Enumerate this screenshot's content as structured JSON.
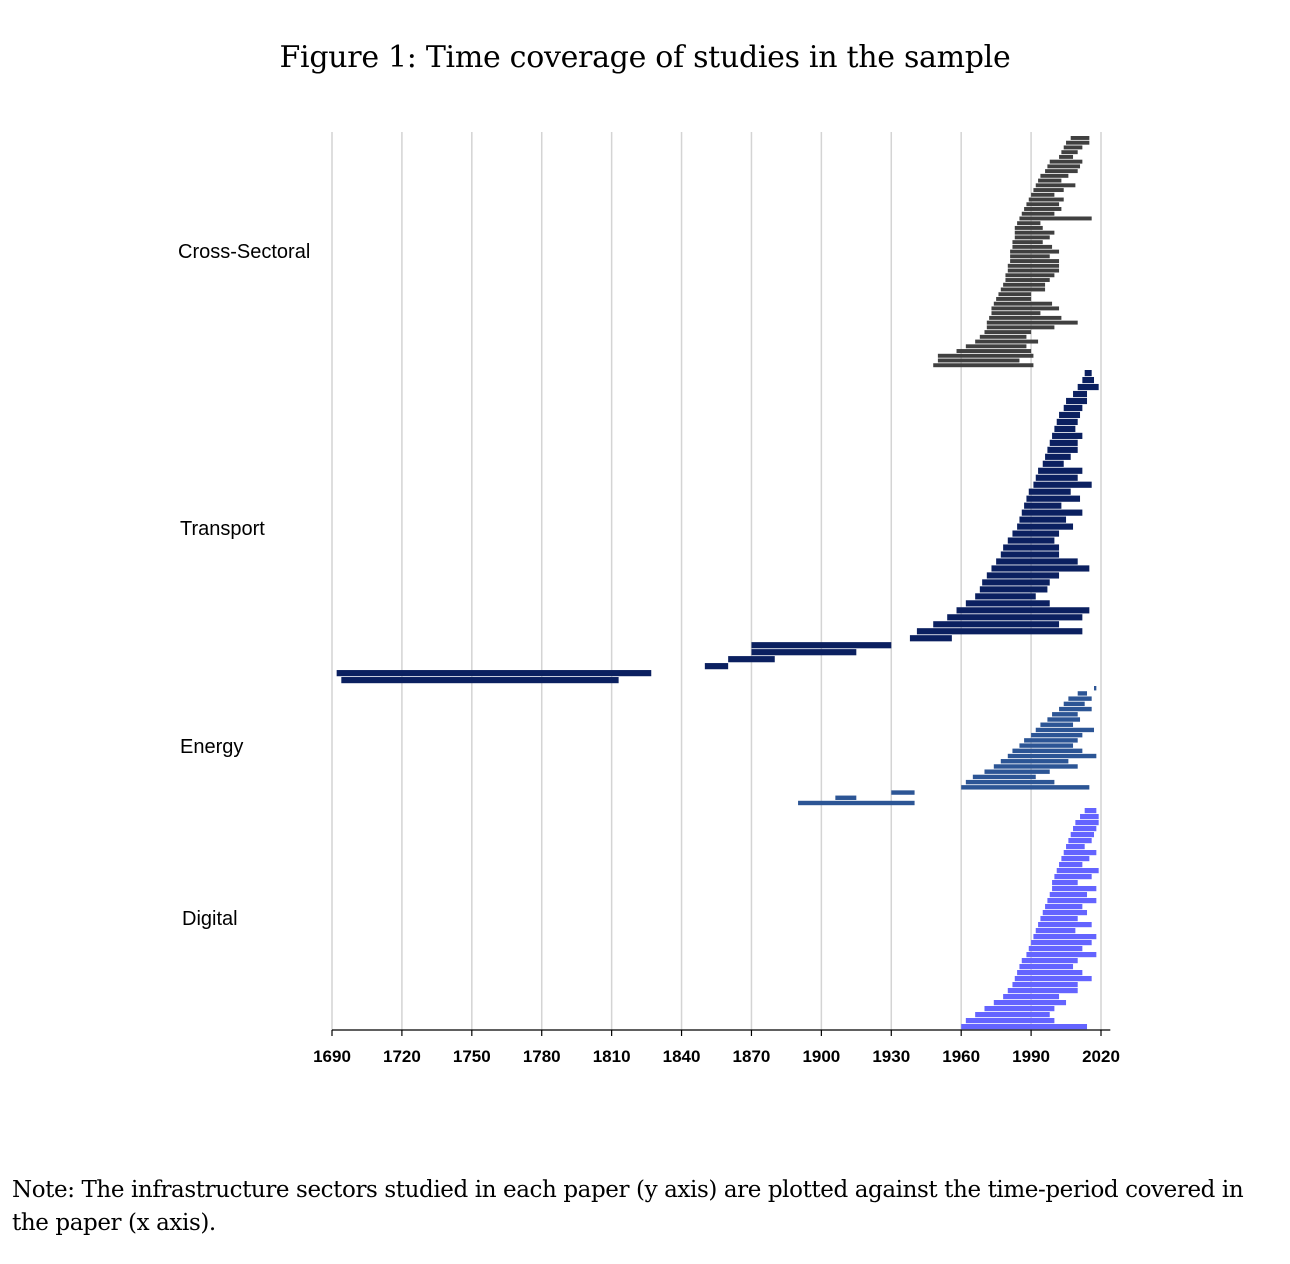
{
  "figure_title": "Figure 1: Time coverage of studies in the sample",
  "note": "Note: The infrastructure sectors studied in each paper (y axis) are plotted against the time-period covered in the paper (x axis).",
  "chart_data": {
    "type": "range-bar",
    "title": "Figure 1: Time coverage of studies in the sample",
    "xlabel": "",
    "ylabel": "",
    "xlim": [
      1690,
      2024
    ],
    "xticks": [
      1690,
      1720,
      1750,
      1780,
      1810,
      1840,
      1870,
      1900,
      1930,
      1960,
      1990,
      2020
    ],
    "grid": "vertical",
    "categories": [
      "Cross-Sectoral",
      "Transport",
      "Energy",
      "Digital"
    ],
    "colors": {
      "Cross-Sectoral": "#404040",
      "Transport": "#0b2060",
      "Energy": "#2c5595",
      "Digital": "#6464ff"
    },
    "series": [
      {
        "name": "Cross-Sectoral",
        "ranges": [
          [
            2007,
            2015
          ],
          [
            2005,
            2015
          ],
          [
            2004,
            2012
          ],
          [
            2003,
            2010
          ],
          [
            2002,
            2008
          ],
          [
            1998,
            2012
          ],
          [
            1997,
            2011
          ],
          [
            1996,
            2010
          ],
          [
            1994,
            2006
          ],
          [
            1993,
            2003
          ],
          [
            1992,
            2009
          ],
          [
            1991,
            2004
          ],
          [
            1990,
            2000
          ],
          [
            1989,
            2004
          ],
          [
            1988,
            2002
          ],
          [
            1987,
            2003
          ],
          [
            1986,
            2000
          ],
          [
            1985,
            2016
          ],
          [
            1984,
            1994
          ],
          [
            1983,
            1995
          ],
          [
            1983,
            2000
          ],
          [
            1983,
            1998
          ],
          [
            1982,
            1995
          ],
          [
            1982,
            1999
          ],
          [
            1981,
            2002
          ],
          [
            1981,
            1998
          ],
          [
            1981,
            2002
          ],
          [
            1980,
            2002
          ],
          [
            1980,
            2002
          ],
          [
            1979,
            2000
          ],
          [
            1979,
            1998
          ],
          [
            1978,
            1996
          ],
          [
            1977,
            1996
          ],
          [
            1976,
            1990
          ],
          [
            1975,
            1990
          ],
          [
            1974,
            1999
          ],
          [
            1973,
            2002
          ],
          [
            1973,
            1994
          ],
          [
            1972,
            2003
          ],
          [
            1971,
            2010
          ],
          [
            1971,
            2000
          ],
          [
            1970,
            1990
          ],
          [
            1968,
            1988
          ],
          [
            1966,
            1993
          ],
          [
            1962,
            1988
          ],
          [
            1958,
            1990
          ],
          [
            1950,
            1991
          ],
          [
            1950,
            1985
          ],
          [
            1948,
            1991
          ]
        ]
      },
      {
        "name": "Transport",
        "ranges": [
          [
            2013,
            2016
          ],
          [
            2012,
            2017
          ],
          [
            2010,
            2019
          ],
          [
            2008,
            2014
          ],
          [
            2005,
            2014
          ],
          [
            2004,
            2012
          ],
          [
            2002,
            2011
          ],
          [
            2001,
            2010
          ],
          [
            2000,
            2009
          ],
          [
            1999,
            2012
          ],
          [
            1998,
            2010
          ],
          [
            1997,
            2010
          ],
          [
            1996,
            2007
          ],
          [
            1995,
            2004
          ],
          [
            1993,
            2012
          ],
          [
            1992,
            2010
          ],
          [
            1991,
            2016
          ],
          [
            1989,
            2007
          ],
          [
            1988,
            2011
          ],
          [
            1987,
            2003
          ],
          [
            1986,
            2012
          ],
          [
            1985,
            2005
          ],
          [
            1984,
            2008
          ],
          [
            1982,
            2002
          ],
          [
            1980,
            2000
          ],
          [
            1978,
            2002
          ],
          [
            1977,
            2002
          ],
          [
            1975,
            2010
          ],
          [
            1973,
            2015
          ],
          [
            1971,
            2002
          ],
          [
            1969,
            1998
          ],
          [
            1968,
            1997
          ],
          [
            1966,
            1992
          ],
          [
            1962,
            1998
          ],
          [
            1958,
            2015
          ],
          [
            1954,
            2012
          ],
          [
            1948,
            2002
          ],
          [
            1941,
            2012
          ],
          [
            1938,
            1956
          ],
          [
            1870,
            1930
          ],
          [
            1870,
            1915
          ],
          [
            1860,
            1880
          ],
          [
            1850,
            1860
          ],
          [
            1692,
            1827
          ],
          [
            1694,
            1813
          ]
        ]
      },
      {
        "name": "Energy",
        "ranges": [
          [
            2017,
            2018
          ],
          [
            2010,
            2014
          ],
          [
            2006,
            2016
          ],
          [
            2004,
            2013
          ],
          [
            2002,
            2016
          ],
          [
            1999,
            2010
          ],
          [
            1997,
            2011
          ],
          [
            1994,
            2008
          ],
          [
            1992,
            2017
          ],
          [
            1990,
            2012
          ],
          [
            1987,
            2010
          ],
          [
            1985,
            2008
          ],
          [
            1982,
            2012
          ],
          [
            1980,
            2018
          ],
          [
            1977,
            2006
          ],
          [
            1974,
            2010
          ],
          [
            1970,
            1998
          ],
          [
            1965,
            1992
          ],
          [
            1962,
            2000
          ],
          [
            1960,
            2015
          ],
          [
            1930,
            1940
          ],
          [
            1906,
            1915
          ],
          [
            1890,
            1940
          ]
        ]
      },
      {
        "name": "Digital",
        "ranges": [
          [
            2013,
            2018
          ],
          [
            2011,
            2019
          ],
          [
            2009,
            2019
          ],
          [
            2008,
            2018
          ],
          [
            2007,
            2017
          ],
          [
            2006,
            2016
          ],
          [
            2005,
            2013
          ],
          [
            2004,
            2018
          ],
          [
            2003,
            2015
          ],
          [
            2002,
            2012
          ],
          [
            2001,
            2019
          ],
          [
            2000,
            2016
          ],
          [
            1999,
            2010
          ],
          [
            1999,
            2018
          ],
          [
            1998,
            2014
          ],
          [
            1997,
            2018
          ],
          [
            1996,
            2012
          ],
          [
            1995,
            2014
          ],
          [
            1994,
            2010
          ],
          [
            1993,
            2016
          ],
          [
            1992,
            2009
          ],
          [
            1991,
            2018
          ],
          [
            1990,
            2016
          ],
          [
            1989,
            2012
          ],
          [
            1988,
            2018
          ],
          [
            1986,
            2010
          ],
          [
            1985,
            2008
          ],
          [
            1984,
            2012
          ],
          [
            1983,
            2016
          ],
          [
            1982,
            2010
          ],
          [
            1980,
            2010
          ],
          [
            1978,
            2002
          ],
          [
            1974,
            2005
          ],
          [
            1970,
            2000
          ],
          [
            1966,
            1998
          ],
          [
            1962,
            2000
          ],
          [
            1960,
            2014
          ]
        ]
      }
    ]
  }
}
